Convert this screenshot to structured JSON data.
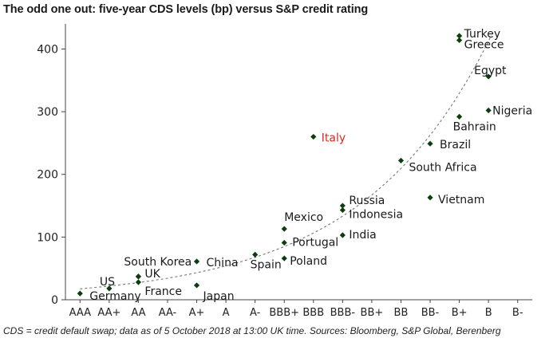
{
  "title": "The odd one out: five-year CDS levels (bp) versus S&P credit rating",
  "footer": "CDS = credit default swap; data as of 5 October 2018 at  13:00 UK time. Sources: Bloomberg, S&P Global, Berenberg",
  "chart_data": {
    "type": "scatter",
    "title": "The odd one out: five-year CDS levels (bp) versus S&P credit rating",
    "xlabel": "",
    "ylabel": "",
    "categories": [
      "AAA",
      "AA+",
      "AA",
      "AA-",
      "A+",
      "A",
      "A-",
      "BBB+",
      "BBB",
      "BBB-",
      "BB+",
      "BB",
      "BB-",
      "B+",
      "B",
      "B-"
    ],
    "yticks": [
      0,
      100,
      200,
      300,
      400
    ],
    "ylim": [
      0,
      440
    ],
    "grid": false,
    "legend": "none",
    "trendline": "exponential (dashed)",
    "highlight_color": "#d9261c",
    "marker_color": "#0d3d0d",
    "points": [
      {
        "label": "Germany",
        "rating": "AAA",
        "x": 0,
        "y": 10
      },
      {
        "label": "US",
        "rating": "AA+",
        "x": 1,
        "y": 18
      },
      {
        "label": "UK",
        "rating": "AA",
        "x": 2,
        "y": 37
      },
      {
        "label": "France",
        "rating": "AA",
        "x": 2,
        "y": 28
      },
      {
        "label": "South Korea",
        "rating": "AA",
        "x": 2,
        "y": 37
      },
      {
        "label": "China",
        "rating": "A+",
        "x": 4,
        "y": 61
      },
      {
        "label": "Japan",
        "rating": "A+",
        "x": 4,
        "y": 23
      },
      {
        "label": "Spain",
        "rating": "A-",
        "x": 6,
        "y": 72
      },
      {
        "label": "Mexico",
        "rating": "BBB+",
        "x": 7,
        "y": 113
      },
      {
        "label": "Portugal",
        "rating": "BBB+",
        "x": 7,
        "y": 91
      },
      {
        "label": "Poland",
        "rating": "BBB+",
        "x": 7,
        "y": 66
      },
      {
        "label": "Italy",
        "rating": "BBB",
        "x": 8,
        "y": 260,
        "highlight": true
      },
      {
        "label": "Russia",
        "rating": "BBB-",
        "x": 9,
        "y": 150
      },
      {
        "label": "Indonesia",
        "rating": "BBB-",
        "x": 9,
        "y": 143
      },
      {
        "label": "India",
        "rating": "BBB-",
        "x": 9,
        "y": 103
      },
      {
        "label": "South Africa",
        "rating": "BB",
        "x": 11,
        "y": 222
      },
      {
        "label": "Brazil",
        "rating": "BB-",
        "x": 12,
        "y": 249
      },
      {
        "label": "Vietnam",
        "rating": "BB-",
        "x": 12,
        "y": 163
      },
      {
        "label": "Turkey",
        "rating": "B+",
        "x": 13,
        "y": 421
      },
      {
        "label": "Greece",
        "rating": "B+",
        "x": 13,
        "y": 414
      },
      {
        "label": "Bahrain",
        "rating": "B+",
        "x": 13,
        "y": 292
      },
      {
        "label": "Egypt",
        "rating": "B",
        "x": 14,
        "y": 356
      },
      {
        "label": "Nigeria",
        "rating": "B",
        "x": 14,
        "y": 302
      }
    ]
  }
}
